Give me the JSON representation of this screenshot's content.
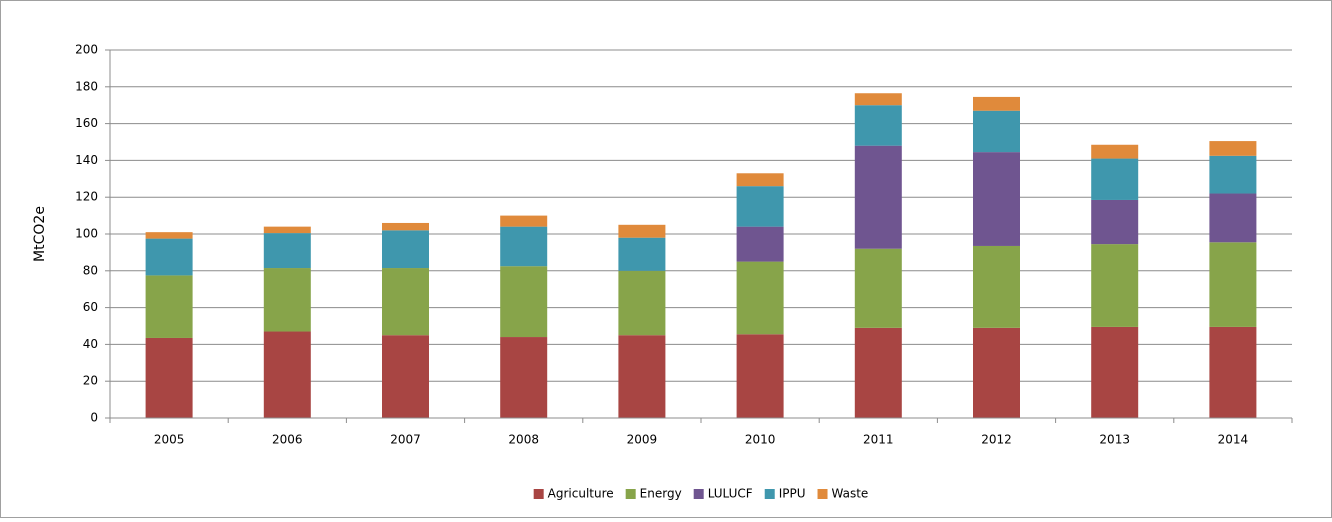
{
  "chart_data": {
    "type": "bar",
    "stacked": true,
    "y_label": "MtCO2e",
    "categories": [
      "2005",
      "2006",
      "2007",
      "2008",
      "2009",
      "2010",
      "2011",
      "2012",
      "2013",
      "2014"
    ],
    "series": [
      {
        "name": "Agriculture",
        "color": "#a84543",
        "values": [
          43.5,
          47,
          45,
          44,
          45,
          45.5,
          49,
          49,
          49.5,
          49.5
        ]
      },
      {
        "name": "Energy",
        "color": "#87a44a",
        "values": [
          34,
          34.5,
          36.5,
          38.5,
          35,
          39.5,
          43,
          44.5,
          45,
          46
        ]
      },
      {
        "name": "LULUCF",
        "color": "#6f5590",
        "values": [
          0,
          0,
          0,
          0,
          0,
          19,
          56,
          51,
          24,
          26.5
        ]
      },
      {
        "name": "IPPU",
        "color": "#3f97ad",
        "values": [
          20,
          19,
          20.5,
          21.5,
          18,
          22,
          22,
          22.5,
          22.5,
          20.5
        ]
      },
      {
        "name": "Waste",
        "color": "#e08a3b",
        "values": [
          3.5,
          3.5,
          4,
          6,
          7,
          7,
          6.5,
          7.5,
          7.5,
          8
        ]
      }
    ],
    "ylim": [
      0,
      200
    ],
    "yticks": [
      0,
      20,
      40,
      60,
      80,
      100,
      120,
      140,
      160,
      180,
      200
    ],
    "grid": true,
    "legend": "bottom"
  }
}
